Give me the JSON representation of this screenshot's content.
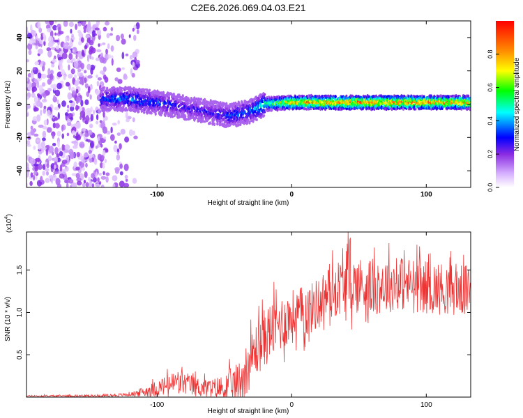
{
  "title": "C2E6.2026.069.04.03.E21",
  "chart_data": [
    {
      "type": "heatmap",
      "title": "C2E6.2026.069.04.03.E21",
      "xlabel": "Height of straight line (km)",
      "ylabel": "Frequency (Hz)",
      "xlim": [
        -197,
        133
      ],
      "ylim": [
        -50,
        50
      ],
      "xticks": [
        -100,
        0,
        100
      ],
      "yticks": [
        -40,
        -20,
        0,
        20,
        40
      ],
      "colorbar": {
        "label": "Normalized spectral amplitude",
        "range": [
          0.0,
          1.0
        ],
        "ticks": [
          0.0,
          0.2,
          0.4,
          0.6,
          0.8
        ],
        "colormap": [
          "#ffffff",
          "#d8b4ff",
          "#8a2be2",
          "#0000ff",
          "#00ffff",
          "#00ff00",
          "#ffff00",
          "#ff8c00",
          "#ff0000"
        ]
      },
      "features": {
        "noise_region_x": [
          -197,
          -120
        ],
        "signal_track": [
          {
            "x": -140,
            "freq": 3,
            "amp": 0.35
          },
          {
            "x": -120,
            "freq": 3,
            "amp": 0.4
          },
          {
            "x": -100,
            "freq": 1,
            "amp": 0.35
          },
          {
            "x": -80,
            "freq": -2,
            "amp": 0.3
          },
          {
            "x": -60,
            "freq": -5,
            "amp": 0.3
          },
          {
            "x": -45,
            "freq": -7,
            "amp": 0.35
          },
          {
            "x": -30,
            "freq": -4,
            "amp": 0.4
          },
          {
            "x": -20,
            "freq": 0,
            "amp": 0.55
          },
          {
            "x": 0,
            "freq": 1,
            "amp": 0.85
          },
          {
            "x": 50,
            "freq": 1,
            "amp": 0.9
          },
          {
            "x": 100,
            "freq": 1,
            "amp": 0.9
          },
          {
            "x": 133,
            "freq": 1,
            "amp": 0.85
          }
        ]
      }
    },
    {
      "type": "line",
      "xlabel": "Height of straight line (km)",
      "ylabel": "SNR (10 * v/v)",
      "scale_label": "(x10",
      "scale_exponent": "4",
      "xlim": [
        -197,
        133
      ],
      "ylim": [
        0,
        1.95
      ],
      "xticks": [
        -100,
        0,
        100
      ],
      "yticks": [
        0.5,
        1.0,
        1.5
      ],
      "ytick_labels": [
        "0.5",
        "1.0",
        "1.5"
      ],
      "series": [
        {
          "name": "SNR",
          "color": "#ee3333",
          "mean_points": [
            {
              "x": -197,
              "y": 0.012
            },
            {
              "x": -140,
              "y": 0.015
            },
            {
              "x": -120,
              "y": 0.03
            },
            {
              "x": -100,
              "y": 0.1
            },
            {
              "x": -85,
              "y": 0.18
            },
            {
              "x": -70,
              "y": 0.12
            },
            {
              "x": -50,
              "y": 0.1
            },
            {
              "x": -40,
              "y": 0.15
            },
            {
              "x": -33,
              "y": 0.35
            },
            {
              "x": -25,
              "y": 0.6
            },
            {
              "x": -15,
              "y": 0.8
            },
            {
              "x": 0,
              "y": 0.95
            },
            {
              "x": 15,
              "y": 1.05
            },
            {
              "x": 25,
              "y": 1.2
            },
            {
              "x": 40,
              "y": 1.35
            },
            {
              "x": 60,
              "y": 1.3
            },
            {
              "x": 80,
              "y": 1.35
            },
            {
              "x": 100,
              "y": 1.3
            },
            {
              "x": 133,
              "y": 1.25
            }
          ],
          "noise_amplitude": [
            {
              "x": -197,
              "y": 0.01
            },
            {
              "x": -120,
              "y": 0.02
            },
            {
              "x": -100,
              "y": 0.1
            },
            {
              "x": -85,
              "y": 0.15
            },
            {
              "x": -60,
              "y": 0.1
            },
            {
              "x": -35,
              "y": 0.3
            },
            {
              "x": -20,
              "y": 0.35
            },
            {
              "x": 20,
              "y": 0.3
            },
            {
              "x": 40,
              "y": 0.35
            },
            {
              "x": 133,
              "y": 0.3
            }
          ],
          "peak": {
            "x": 42,
            "y": 1.95
          }
        }
      ]
    }
  ]
}
